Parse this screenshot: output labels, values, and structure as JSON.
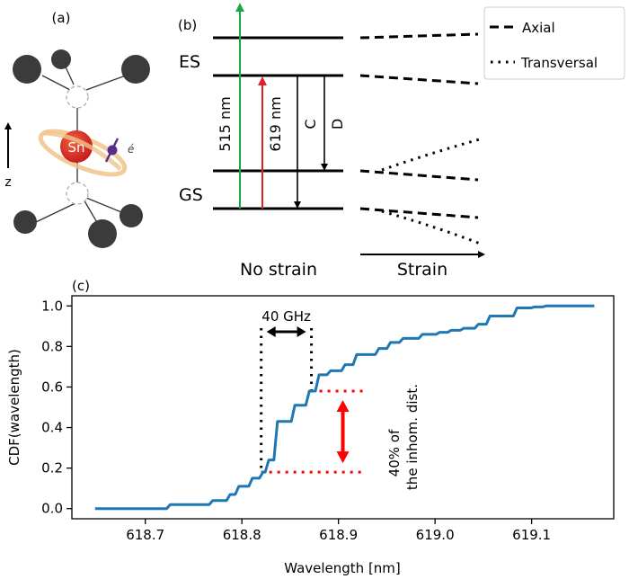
{
  "panel_a": {
    "label": "(a)",
    "center_atom": "Sn",
    "electron_label": "é",
    "axis_label": "z"
  },
  "panel_b": {
    "label": "(b)",
    "es_label": "ES",
    "gs_label": "GS",
    "green_label": "515 nm",
    "red_label": "619 nm",
    "c_label": "C",
    "d_label": "D",
    "no_strain_label": "No strain",
    "strain_label": "Strain",
    "legend": [
      {
        "label": "Axial",
        "style": "dashed"
      },
      {
        "label": "Transversal",
        "style": "dotted"
      }
    ],
    "colors": {
      "green": "#1aa84a",
      "red": "#e0202a"
    }
  },
  "chart_data": {
    "type": "line",
    "panel_label": "(c)",
    "title": "",
    "xlabel": "Wavelength [nm]",
    "ylabel": "CDF(wavelength)",
    "xlim": [
      618.624,
      619.185
    ],
    "ylim": [
      -0.05,
      1.05
    ],
    "xticks": [
      618.7,
      618.8,
      618.9,
      619.0,
      619.1
    ],
    "xtick_labels": [
      "618.7",
      "618.8",
      "618.9",
      "619.0",
      "619.1"
    ],
    "yticks": [
      0.0,
      0.2,
      0.4,
      0.6,
      0.8,
      1.0
    ],
    "ytick_labels": [
      "0.0",
      "0.2",
      "0.4",
      "0.6",
      "0.8",
      "1.0"
    ],
    "grid": false,
    "series": [
      {
        "name": "CDF",
        "color": "#1f77b4",
        "step": true,
        "x": [
          618.648,
          618.724,
          618.768,
          618.786,
          618.795,
          618.809,
          618.82,
          618.826,
          618.835,
          618.853,
          618.868,
          618.878,
          618.89,
          618.905,
          618.917,
          618.94,
          618.952,
          618.965,
          618.985,
          619.003,
          619.015,
          619.028,
          619.043,
          619.055,
          619.083,
          619.101,
          619.113,
          619.163
        ],
        "y": [
          0.0,
          0.02,
          0.04,
          0.07,
          0.11,
          0.15,
          0.18,
          0.24,
          0.43,
          0.51,
          0.58,
          0.66,
          0.68,
          0.71,
          0.76,
          0.79,
          0.82,
          0.84,
          0.86,
          0.87,
          0.88,
          0.89,
          0.91,
          0.95,
          0.99,
          0.995,
          1.0,
          1.0
        ]
      }
    ],
    "annotations": {
      "bandwidth": {
        "label": "40 GHz",
        "x0": 618.82,
        "x1": 618.872,
        "color": "#000000"
      },
      "fraction": {
        "label_line1": "40% of",
        "label_line2": "the inhom. dist.",
        "y0": 0.18,
        "y1": 0.58,
        "x_end": 618.925,
        "color": "#ff0000"
      }
    }
  }
}
